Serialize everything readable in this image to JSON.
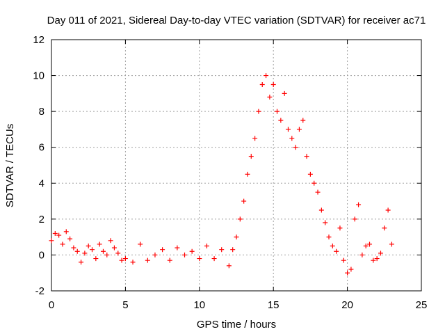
{
  "chart_data": {
    "type": "scatter",
    "title": "Day 011 of 2021, Sidereal Day-to-day VTEC variation (SDTVAR) for receiver ac71",
    "xlabel": "GPS time / hours",
    "ylabel": "SDTVAR / TECUs",
    "xlim": [
      0,
      25
    ],
    "ylim": [
      -2,
      12
    ],
    "xticks": [
      0,
      5,
      10,
      15,
      20,
      25
    ],
    "yticks": [
      -2,
      0,
      2,
      4,
      6,
      8,
      10,
      12
    ],
    "grid": true,
    "legend": "none",
    "marker": "+",
    "color": "#ff0000",
    "series": [
      {
        "name": "SDTVAR",
        "x": [
          0.0,
          0.25,
          0.5,
          0.75,
          1.0,
          1.25,
          1.5,
          1.75,
          2.0,
          2.25,
          2.5,
          2.75,
          3.0,
          3.25,
          3.5,
          3.75,
          4.0,
          4.25,
          4.5,
          4.75,
          5.0,
          5.5,
          6.0,
          6.5,
          7.0,
          7.5,
          8.0,
          8.5,
          9.0,
          9.5,
          10.0,
          10.5,
          11.0,
          11.5,
          12.0,
          12.25,
          12.5,
          12.75,
          13.0,
          13.25,
          13.5,
          13.75,
          14.0,
          14.25,
          14.5,
          14.75,
          15.0,
          15.25,
          15.5,
          15.75,
          16.0,
          16.25,
          16.5,
          16.75,
          17.0,
          17.25,
          17.5,
          17.75,
          18.0,
          18.25,
          18.5,
          18.75,
          19.0,
          19.25,
          19.5,
          19.75,
          20.0,
          20.25,
          20.5,
          20.75,
          21.0,
          21.25,
          21.5,
          21.75,
          22.0,
          22.25,
          22.5,
          22.75,
          23.0
        ],
        "y": [
          0.8,
          1.2,
          1.1,
          0.6,
          1.3,
          0.9,
          0.4,
          0.2,
          -0.4,
          0.1,
          0.5,
          0.3,
          -0.2,
          0.6,
          0.2,
          0.0,
          0.8,
          0.4,
          0.1,
          -0.3,
          -0.2,
          -0.4,
          0.6,
          -0.3,
          0.0,
          0.3,
          -0.3,
          0.4,
          0.0,
          0.2,
          -0.2,
          0.5,
          -0.2,
          0.3,
          -0.6,
          0.3,
          1.0,
          2.0,
          3.0,
          4.5,
          5.5,
          6.5,
          8.0,
          9.5,
          10.0,
          8.8,
          9.5,
          8.0,
          7.5,
          9.0,
          7.0,
          6.5,
          6.0,
          7.0,
          7.5,
          5.5,
          4.5,
          4.0,
          3.5,
          2.5,
          1.8,
          1.0,
          0.5,
          0.2,
          1.5,
          -0.3,
          -1.0,
          -0.8,
          2.0,
          2.8,
          0.0,
          0.5,
          0.6,
          -0.3,
          -0.2,
          0.1,
          1.5,
          2.5,
          0.6
        ]
      }
    ]
  }
}
